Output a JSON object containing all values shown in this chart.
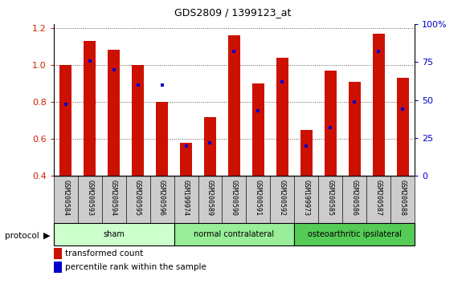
{
  "title": "GDS2809 / 1399123_at",
  "samples": [
    "GSM200584",
    "GSM200593",
    "GSM200594",
    "GSM200595",
    "GSM200596",
    "GSM199974",
    "GSM200589",
    "GSM200590",
    "GSM200591",
    "GSM200592",
    "GSM199973",
    "GSM200585",
    "GSM200586",
    "GSM200587",
    "GSM200588"
  ],
  "transformed_count": [
    1.0,
    1.13,
    1.08,
    1.0,
    0.8,
    0.58,
    0.72,
    1.16,
    0.9,
    1.04,
    0.65,
    0.97,
    0.91,
    1.17,
    0.93
  ],
  "percentile_rank_pct": [
    47,
    76,
    70,
    60,
    60,
    20,
    22,
    82,
    43,
    62,
    20,
    32,
    49,
    82,
    44
  ],
  "groups": [
    {
      "label": "sham",
      "start": 0,
      "end": 4,
      "color": "#ccffcc"
    },
    {
      "label": "normal contralateral",
      "start": 5,
      "end": 9,
      "color": "#99ee99"
    },
    {
      "label": "osteoarthritic ipsilateral",
      "start": 10,
      "end": 14,
      "color": "#55cc55"
    }
  ],
  "ylim_left": [
    0.4,
    1.22
  ],
  "ylim_right": [
    0,
    100
  ],
  "yticks_left": [
    0.4,
    0.6,
    0.8,
    1.0,
    1.2
  ],
  "bar_color": "#cc1100",
  "dot_color": "#0000cc",
  "dot_size": 12,
  "bar_width": 0.5,
  "grid_color": "#555555",
  "tick_label_color_left": "#cc2200",
  "tick_label_color_right": "#0000cc",
  "bg_label": "#cccccc"
}
